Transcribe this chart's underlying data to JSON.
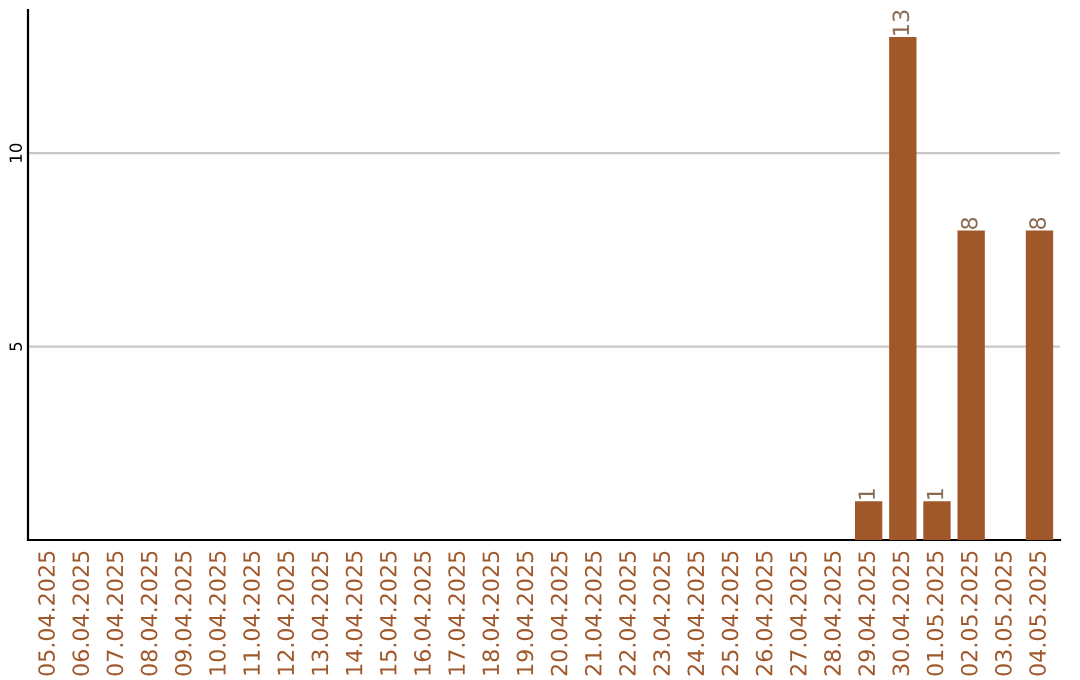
{
  "chart_data": {
    "type": "bar",
    "categories": [
      "05.04.2025",
      "06.04.2025",
      "07.04.2025",
      "08.04.2025",
      "09.04.2025",
      "10.04.2025",
      "11.04.2025",
      "12.04.2025",
      "13.04.2025",
      "14.04.2025",
      "15.04.2025",
      "16.04.2025",
      "17.04.2025",
      "18.04.2025",
      "19.04.2025",
      "20.04.2025",
      "21.04.2025",
      "22.04.2025",
      "23.04.2025",
      "24.04.2025",
      "25.04.2025",
      "26.04.2025",
      "27.04.2025",
      "28.04.2025",
      "29.04.2025",
      "30.04.2025",
      "01.05.2025",
      "02.05.2025",
      "03.05.2025",
      "04.05.2025"
    ],
    "values": [
      0,
      0,
      0,
      0,
      0,
      0,
      0,
      0,
      0,
      0,
      0,
      0,
      0,
      0,
      0,
      0,
      0,
      0,
      0,
      0,
      0,
      0,
      0,
      0,
      1,
      13,
      1,
      8,
      0,
      8
    ],
    "value_labels": [
      null,
      null,
      null,
      null,
      null,
      null,
      null,
      null,
      null,
      null,
      null,
      null,
      null,
      null,
      null,
      null,
      null,
      null,
      null,
      null,
      null,
      null,
      null,
      null,
      "1",
      "13",
      "1",
      "8",
      null,
      "8"
    ],
    "color": "#a0572a",
    "ylim": [
      0,
      13.7
    ],
    "yticks": [
      5,
      10
    ],
    "grid": "y",
    "legend": false
  }
}
